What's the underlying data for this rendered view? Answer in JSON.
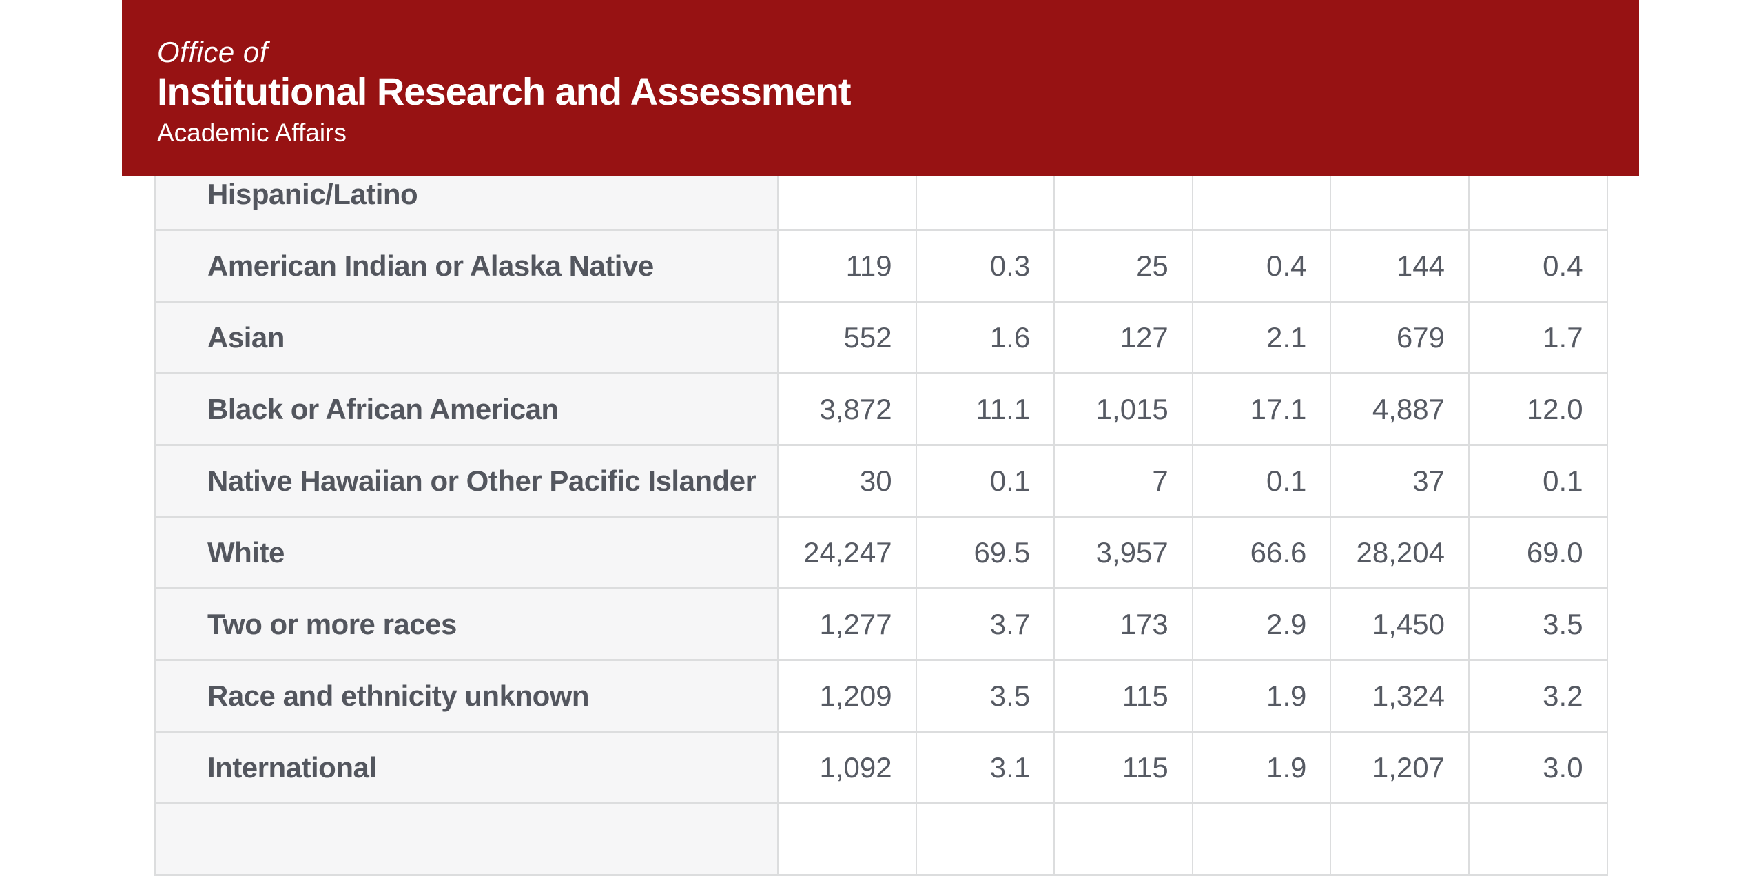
{
  "header": {
    "office_of": "Office of",
    "title": "Institutional Research and Assessment",
    "subtitle": "Academic Affairs",
    "background_color": "#971213",
    "text_color": "#ffffff"
  },
  "table": {
    "numeric_column_count": 6,
    "rows": [
      {
        "label": "Hispanic/Latino",
        "values": [
          "",
          "",
          "",
          "",
          "",
          ""
        ]
      },
      {
        "label": "American Indian or Alaska Native",
        "values": [
          "119",
          "0.3",
          "25",
          "0.4",
          "144",
          "0.4"
        ]
      },
      {
        "label": "Asian",
        "values": [
          "552",
          "1.6",
          "127",
          "2.1",
          "679",
          "1.7"
        ]
      },
      {
        "label": "Black or African American",
        "values": [
          "3,872",
          "11.1",
          "1,015",
          "17.1",
          "4,887",
          "12.0"
        ]
      },
      {
        "label": "Native Hawaiian or Other Pacific Islander",
        "values": [
          "30",
          "0.1",
          "7",
          "0.1",
          "37",
          "0.1"
        ]
      },
      {
        "label": "White",
        "values": [
          "24,247",
          "69.5",
          "3,957",
          "66.6",
          "28,204",
          "69.0"
        ]
      },
      {
        "label": "Two or more races",
        "values": [
          "1,277",
          "3.7",
          "173",
          "2.9",
          "1,450",
          "3.5"
        ]
      },
      {
        "label": "Race and ethnicity unknown",
        "values": [
          "1,209",
          "3.5",
          "115",
          "1.9",
          "1,324",
          "3.2"
        ]
      },
      {
        "label": "International",
        "values": [
          "1,092",
          "3.1",
          "115",
          "1.9",
          "1,207",
          "3.0"
        ]
      },
      {
        "label": "",
        "values": [
          "",
          "",
          "",
          "",
          "",
          ""
        ]
      }
    ],
    "colors": {
      "label_cell_background": "#f6f6f7",
      "value_cell_background": "#ffffff",
      "border": "#dcddde",
      "text": "#565a63"
    }
  }
}
